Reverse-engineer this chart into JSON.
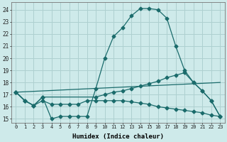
{
  "xlabel": "Humidex (Indice chaleur)",
  "xlim": [
    -0.5,
    23.5
  ],
  "ylim": [
    14.7,
    24.6
  ],
  "xtick_labels": [
    "0",
    "1",
    "2",
    "3",
    "4",
    "5",
    "6",
    "7",
    "8",
    "9",
    "10",
    "11",
    "12",
    "13",
    "14",
    "15",
    "16",
    "17",
    "18",
    "19",
    "20",
    "21",
    "22",
    "23"
  ],
  "ytick_values": [
    15,
    16,
    17,
    18,
    19,
    20,
    21,
    22,
    23,
    24
  ],
  "bg_color": "#ceeaea",
  "line_color": "#1a6b6b",
  "grid_color": "#aed0d0",
  "line1_x": [
    0,
    1,
    2,
    3,
    4,
    5,
    6,
    7,
    8,
    9,
    10,
    11,
    12,
    13,
    14,
    15,
    16,
    17,
    18,
    19,
    20,
    21,
    22,
    23
  ],
  "line1_y": [
    17.2,
    16.5,
    16.1,
    16.8,
    15.0,
    15.2,
    15.2,
    15.2,
    15.2,
    17.5,
    20.0,
    21.8,
    22.5,
    23.5,
    24.1,
    24.1,
    24.0,
    23.3,
    21.0,
    19.0,
    18.0,
    17.3,
    16.5,
    15.2
  ],
  "line2_x": [
    0,
    1,
    2,
    3,
    9,
    10,
    11,
    12,
    13,
    14,
    15,
    16,
    17,
    18,
    19,
    20,
    21,
    22,
    23
  ],
  "line2_y": [
    17.2,
    16.5,
    16.1,
    16.8,
    16.8,
    17.0,
    17.2,
    17.3,
    17.5,
    17.7,
    17.9,
    18.1,
    18.4,
    18.6,
    18.8,
    18.0,
    17.3,
    16.5,
    15.2
  ],
  "line3_x": [
    0,
    1,
    2,
    3,
    4,
    5,
    6,
    7,
    8,
    9,
    10,
    11,
    12,
    13,
    14,
    15,
    16,
    17,
    18,
    19,
    20,
    21,
    22,
    23
  ],
  "line3_y": [
    17.2,
    16.5,
    16.1,
    16.5,
    16.2,
    16.2,
    16.2,
    16.2,
    16.5,
    16.5,
    16.5,
    16.5,
    16.5,
    16.4,
    16.3,
    16.2,
    16.0,
    15.9,
    15.8,
    15.7,
    15.6,
    15.5,
    15.3,
    15.2
  ],
  "line4_x": [
    0,
    23
  ],
  "line4_y": [
    17.2,
    18.0
  ]
}
